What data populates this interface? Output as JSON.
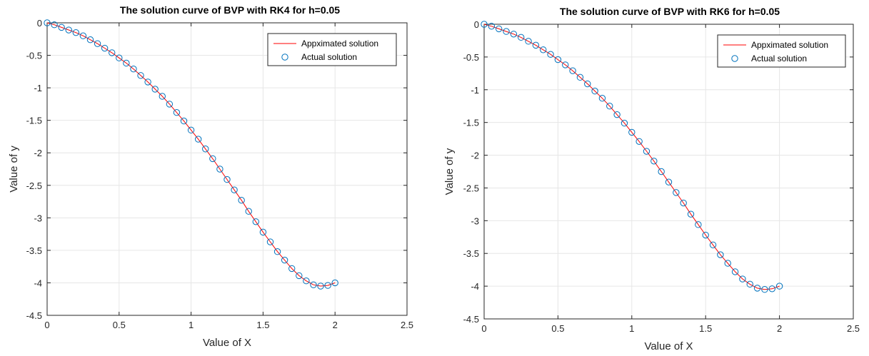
{
  "chart_data": [
    {
      "type": "line",
      "title": "The solution curve of BVP with RK4 for h=0.05",
      "xlabel": "Value of X",
      "ylabel": "Value of y",
      "xlim": [
        0,
        2.5
      ],
      "ylim": [
        -4.5,
        0
      ],
      "xticks": [
        "0",
        "0.5",
        "1",
        "1.5",
        "2",
        "2.5"
      ],
      "yticks": [
        "0",
        "-0.5",
        "-1",
        "-1.5",
        "-2",
        "-2.5",
        "-3",
        "-3.5",
        "-4",
        "-4.5"
      ],
      "grid": true,
      "legend_position": "top-right",
      "series": [
        {
          "name": "Appximated solution",
          "style": "line",
          "color": "#ff0000"
        },
        {
          "name": "Actual solution",
          "style": "markers-circle",
          "color": "#0072bd"
        }
      ],
      "x": [
        0,
        0.05,
        0.1,
        0.15,
        0.2,
        0.25,
        0.3,
        0.35,
        0.4,
        0.45,
        0.5,
        0.55,
        0.6,
        0.65,
        0.7,
        0.75,
        0.8,
        0.85,
        0.9,
        0.95,
        1.0,
        1.05,
        1.1,
        1.15,
        1.2,
        1.25,
        1.3,
        1.35,
        1.4,
        1.45,
        1.5,
        1.55,
        1.6,
        1.65,
        1.7,
        1.75,
        1.8,
        1.85,
        1.9,
        1.95,
        2.0
      ],
      "y": [
        0,
        -0.03,
        -0.07,
        -0.11,
        -0.15,
        -0.2,
        -0.26,
        -0.32,
        -0.39,
        -0.46,
        -0.54,
        -0.62,
        -0.71,
        -0.81,
        -0.91,
        -1.02,
        -1.13,
        -1.25,
        -1.38,
        -1.51,
        -1.65,
        -1.79,
        -1.94,
        -2.09,
        -2.25,
        -2.41,
        -2.57,
        -2.73,
        -2.9,
        -3.06,
        -3.22,
        -3.37,
        -3.52,
        -3.65,
        -3.78,
        -3.89,
        -3.97,
        -4.03,
        -4.05,
        -4.04,
        -4.0
      ]
    },
    {
      "type": "line",
      "title": "The solution curve of BVP with RK6 for h=0.05",
      "xlabel": "Value of X",
      "ylabel": "Value of y",
      "xlim": [
        0,
        2.5
      ],
      "ylim": [
        -4.5,
        0
      ],
      "xticks": [
        "0",
        "0.5",
        "1",
        "1.5",
        "2",
        "2.5"
      ],
      "yticks": [
        "0",
        "-0.5",
        "-1",
        "-1.5",
        "-2",
        "-2.5",
        "-3",
        "-3.5",
        "-4",
        "-4.5"
      ],
      "grid": true,
      "legend_position": "top-right",
      "series": [
        {
          "name": "Appximated solution",
          "style": "line",
          "color": "#ff0000"
        },
        {
          "name": "Actual solution",
          "style": "markers-circle",
          "color": "#0072bd"
        }
      ],
      "x": [
        0,
        0.05,
        0.1,
        0.15,
        0.2,
        0.25,
        0.3,
        0.35,
        0.4,
        0.45,
        0.5,
        0.55,
        0.6,
        0.65,
        0.7,
        0.75,
        0.8,
        0.85,
        0.9,
        0.95,
        1.0,
        1.05,
        1.1,
        1.15,
        1.2,
        1.25,
        1.3,
        1.35,
        1.4,
        1.45,
        1.5,
        1.55,
        1.6,
        1.65,
        1.7,
        1.75,
        1.8,
        1.85,
        1.9,
        1.95,
        2.0
      ],
      "y": [
        0,
        -0.03,
        -0.07,
        -0.11,
        -0.15,
        -0.2,
        -0.26,
        -0.32,
        -0.39,
        -0.46,
        -0.54,
        -0.62,
        -0.71,
        -0.81,
        -0.91,
        -1.02,
        -1.13,
        -1.25,
        -1.38,
        -1.51,
        -1.65,
        -1.79,
        -1.94,
        -2.09,
        -2.25,
        -2.41,
        -2.57,
        -2.73,
        -2.9,
        -3.06,
        -3.22,
        -3.37,
        -3.52,
        -3.65,
        -3.78,
        -3.89,
        -3.97,
        -4.03,
        -4.05,
        -4.04,
        -4.0
      ]
    }
  ]
}
